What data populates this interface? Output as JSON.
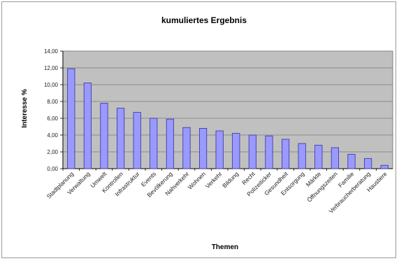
{
  "chart_data": {
    "type": "bar",
    "title": "kumuliertes Ergebnis",
    "xlabel": "Themen",
    "ylabel": "Interesse %",
    "ylim": [
      0,
      14
    ],
    "yticks": [
      "0,00",
      "2,00",
      "4,00",
      "6,00",
      "8,00",
      "10,00",
      "12,00",
      "14,00"
    ],
    "grid": true,
    "legend": "none",
    "colors": {
      "bar": "#9999ff",
      "bar_edge": "#333399",
      "plot_bg": "#c0c0c0"
    },
    "categories": [
      "Stadtplanung",
      "Verwaltung",
      "Umwelt",
      "Kontrollen",
      "Infrastruktur",
      "Events",
      "Bevölkerung",
      "Nahverkehr",
      "Wohnen",
      "Verkehr",
      "Bildung",
      "Recht",
      "Polizeiticker",
      "Gesundheit",
      "Entsorgung",
      "Märkte",
      "Öffnungszeiten",
      "Familie",
      "Verbraucherberatung",
      "Haustiere"
    ],
    "values": [
      11.9,
      10.2,
      7.8,
      7.2,
      6.7,
      6.0,
      5.9,
      4.9,
      4.8,
      4.5,
      4.2,
      4.0,
      3.9,
      3.5,
      3.0,
      2.8,
      2.5,
      1.7,
      1.2,
      0.4
    ]
  }
}
